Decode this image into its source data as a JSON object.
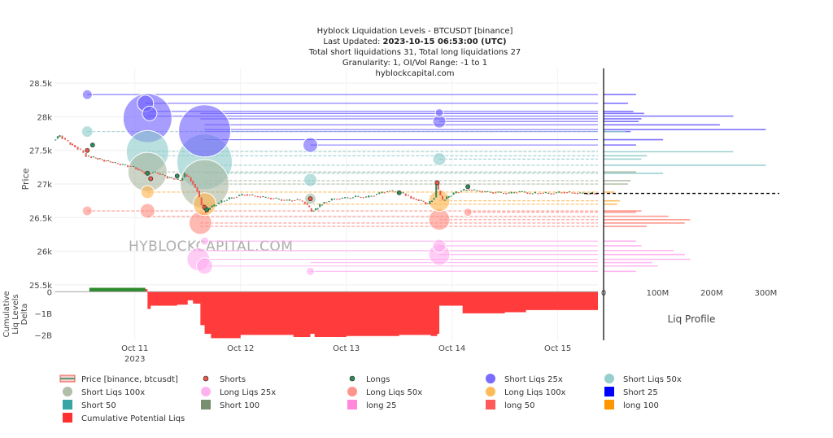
{
  "header": {
    "title": "Hyblock Liquidation Levels - BTCUSDT [binance]",
    "updated_prefix": "Last Updated: ",
    "updated_value": "2023-10-15 06:53:00 (UTC)",
    "totals": "Total short liquidations 31, Total long liquidations 27",
    "granularity": "Granularity: 1, OI/Vol Range: -1 to 1",
    "site": "hyblockcapital.com"
  },
  "watermark": "HYBLOCKCAPITAL.COM",
  "colors": {
    "price_up": "#2e8b57",
    "price_down": "#e8584b",
    "short": "#6a5cff",
    "short50": "#8cc9c9",
    "short100": "#a8b8a0",
    "long25": "#ffaaee",
    "long50": "#ff8a80",
    "long100": "#ffb347",
    "cum_neg": "#ff3030",
    "cum_pos": "#2e8b2e",
    "current": "#000000"
  },
  "chart_data": {
    "type": "line",
    "price_axis": {
      "label": "Price",
      "ticks": [
        25500,
        26000,
        26500,
        27000,
        27500,
        28000,
        28500
      ],
      "tick_labels": [
        "25.5k",
        "26k",
        "26.5k",
        "27k",
        "27.5k",
        "28k",
        "28.5k"
      ],
      "ylim": [
        25450,
        28720
      ]
    },
    "x_axis": {
      "tick_days": [
        11,
        12,
        13,
        14,
        15
      ],
      "tick_labels": [
        "Oct 11",
        "Oct 12",
        "Oct 13",
        "Oct 14",
        "Oct 15"
      ],
      "year_label": "2023",
      "xlim_days": [
        10.24,
        15.38
      ]
    },
    "price_series": {
      "name": "Price [binance, btcusdt]",
      "x_days": [
        10.24,
        10.3,
        10.38,
        10.42,
        10.5,
        10.55,
        10.6,
        10.66,
        10.72,
        10.78,
        10.85,
        10.92,
        11.0,
        11.06,
        11.12,
        11.18,
        11.25,
        11.32,
        11.38,
        11.44,
        11.48,
        11.52,
        11.56,
        11.6,
        11.64,
        11.68,
        11.72,
        11.78,
        11.86,
        11.95,
        12.05,
        12.15,
        12.25,
        12.35,
        12.45,
        12.55,
        12.62,
        12.68,
        12.72,
        12.76,
        12.8,
        12.9,
        13.0,
        13.1,
        13.2,
        13.3,
        13.4,
        13.5,
        13.55,
        13.6,
        13.65,
        13.72,
        13.78,
        13.84,
        13.86,
        13.88,
        13.92,
        13.98,
        14.05,
        14.15,
        14.25,
        14.35,
        14.45,
        14.55,
        14.65,
        14.75,
        14.85,
        14.95,
        15.05,
        15.15,
        15.25,
        15.38
      ],
      "close": [
        27650,
        27720,
        27620,
        27580,
        27500,
        27420,
        27400,
        27380,
        27350,
        27330,
        27300,
        27280,
        27250,
        27200,
        27150,
        27180,
        27150,
        27100,
        27080,
        27050,
        27150,
        27100,
        27000,
        26900,
        26700,
        26580,
        26650,
        26700,
        26760,
        26810,
        26850,
        26820,
        26800,
        26780,
        26750,
        26770,
        26720,
        26600,
        26620,
        26690,
        26730,
        26780,
        26790,
        26810,
        26800,
        26850,
        26900,
        26880,
        26860,
        26820,
        26780,
        26750,
        26700,
        26800,
        27000,
        26900,
        26750,
        26820,
        26880,
        26920,
        26900,
        26880,
        26870,
        26860,
        26890,
        26860,
        26870,
        26860,
        26880,
        26870,
        26860,
        26860
      ]
    },
    "current_price": 26860,
    "short_liqs": [
      {
        "label": "Short Liqs 25x",
        "price": 28330,
        "day": 10.55,
        "size": 6
      },
      {
        "label": "Short Liqs 25x",
        "price": 28200,
        "day": 11.1,
        "size": 10
      },
      {
        "label": "Short Liqs 25x",
        "price": 28050,
        "day": 11.14,
        "size": 9
      },
      {
        "label": "Short Liqs 25x",
        "price": 27980,
        "day": 11.12,
        "size": 30
      },
      {
        "label": "Short Liqs 25x",
        "price": 27790,
        "day": 11.66,
        "size": 32
      },
      {
        "label": "Short Liqs 25x",
        "price": 27580,
        "day": 12.66,
        "size": 9
      },
      {
        "label": "Short Liqs 25x",
        "price": 28060,
        "day": 13.88,
        "size": 5
      },
      {
        "label": "Short Liqs 25x",
        "price": 27930,
        "day": 13.88,
        "size": 8
      },
      {
        "label": "Short Liqs 50x",
        "price": 27780,
        "day": 10.55,
        "size": 7
      },
      {
        "label": "Short Liqs 50x",
        "price": 27480,
        "day": 11.12,
        "size": 26
      },
      {
        "label": "Short Liqs 50x",
        "price": 27330,
        "day": 11.66,
        "size": 34
      },
      {
        "label": "Short Liqs 50x",
        "price": 27060,
        "day": 12.66,
        "size": 8
      },
      {
        "label": "Short Liqs 50x",
        "price": 27370,
        "day": 13.88,
        "size": 8
      },
      {
        "label": "Short Liqs 100x",
        "price": 27180,
        "day": 11.12,
        "size": 24
      },
      {
        "label": "Short Liqs 100x",
        "price": 27000,
        "day": 11.66,
        "size": 30
      },
      {
        "label": "Short Liqs 100x",
        "price": 26780,
        "day": 12.66,
        "size": 7
      }
    ],
    "long_liqs": [
      {
        "label": "Long Liqs 25x",
        "price": 25880,
        "day": 11.6,
        "size": 14
      },
      {
        "label": "Long Liqs 25x",
        "price": 25780,
        "day": 11.66,
        "size": 10
      },
      {
        "label": "Long Liqs 25x",
        "price": 26150,
        "day": 11.66,
        "size": 5
      },
      {
        "label": "Long Liqs 25x",
        "price": 25950,
        "day": 13.88,
        "size": 13
      },
      {
        "label": "Long Liqs 25x",
        "price": 26080,
        "day": 13.88,
        "size": 8
      },
      {
        "label": "Long Liqs 25x",
        "price": 25700,
        "day": 12.66,
        "size": 5
      },
      {
        "label": "Long Liqs 50x",
        "price": 26600,
        "day": 11.12,
        "size": 9
      },
      {
        "label": "Long Liqs 50x",
        "price": 26420,
        "day": 11.62,
        "size": 14
      },
      {
        "label": "Long Liqs 50x",
        "price": 26470,
        "day": 13.88,
        "size": 13
      },
      {
        "label": "Long Liqs 50x",
        "price": 26600,
        "day": 10.55,
        "size": 6
      },
      {
        "label": "Long Liqs 50x",
        "price": 26580,
        "day": 14.15,
        "size": 5
      },
      {
        "label": "Long Liqs 100x",
        "price": 26880,
        "day": 11.12,
        "size": 8
      },
      {
        "label": "Long Liqs 100x",
        "price": 26700,
        "day": 11.66,
        "size": 14
      },
      {
        "label": "Long Liqs 100x",
        "price": 26750,
        "day": 13.88,
        "size": 13
      }
    ],
    "short_levels": [
      {
        "kind": "Short 25",
        "price": 28330,
        "start_day": 10.55,
        "value_m": 60
      },
      {
        "kind": "Short 25",
        "price": 28200,
        "start_day": 11.1,
        "value_m": 45
      },
      {
        "kind": "Short 25",
        "price": 28080,
        "start_day": 11.14,
        "value_m": 55
      },
      {
        "kind": "Short 25",
        "price": 28050,
        "start_day": 11.62,
        "value_m": 75
      },
      {
        "kind": "Short 25",
        "price": 28010,
        "start_day": 11.12,
        "value_m": 240
      },
      {
        "kind": "Short 25",
        "price": 27970,
        "start_day": 11.62,
        "value_m": 70
      },
      {
        "kind": "Short 25",
        "price": 27930,
        "start_day": 13.88,
        "value_m": 65
      },
      {
        "kind": "Short 25",
        "price": 27880,
        "start_day": 11.66,
        "value_m": 215
      },
      {
        "kind": "Short 25",
        "price": 27810,
        "start_day": 11.66,
        "value_m": 300
      },
      {
        "kind": "Short 25",
        "price": 27780,
        "start_day": 11.66,
        "value_m": 50
      },
      {
        "kind": "Short 25",
        "price": 27660,
        "start_day": 11.66,
        "value_m": 110
      },
      {
        "kind": "Short 25",
        "price": 27580,
        "start_day": 12.66,
        "value_m": 60
      },
      {
        "kind": "Short 50",
        "price": 27780,
        "start_day": 10.55,
        "value_m": 40
      },
      {
        "kind": "Short 50",
        "price": 27480,
        "start_day": 11.12,
        "value_m": 240
      },
      {
        "kind": "Short 50",
        "price": 27420,
        "start_day": 11.12,
        "value_m": 80
      },
      {
        "kind": "Short 50",
        "price": 27370,
        "start_day": 13.88,
        "value_m": 70
      },
      {
        "kind": "Short 50",
        "price": 27280,
        "start_day": 11.66,
        "value_m": 300
      },
      {
        "kind": "Short 50",
        "price": 27160,
        "start_day": 11.66,
        "value_m": 110
      },
      {
        "kind": "Short 100",
        "price": 27180,
        "start_day": 11.12,
        "value_m": 60
      },
      {
        "kind": "Short 100",
        "price": 27050,
        "start_day": 11.66,
        "value_m": 50
      },
      {
        "kind": "Short 100",
        "price": 27000,
        "start_day": 11.66,
        "value_m": 45
      }
    ],
    "long_levels": [
      {
        "kind": "long 25",
        "price": 26150,
        "start_day": 11.66,
        "value_m": 60
      },
      {
        "kind": "long 25",
        "price": 26080,
        "start_day": 13.88,
        "value_m": 70
      },
      {
        "kind": "long 25",
        "price": 26010,
        "start_day": 11.6,
        "value_m": 130
      },
      {
        "kind": "long 25",
        "price": 25950,
        "start_day": 13.88,
        "value_m": 150
      },
      {
        "kind": "long 25",
        "price": 25880,
        "start_day": 11.6,
        "value_m": 160
      },
      {
        "kind": "long 25",
        "price": 25830,
        "start_day": 12.66,
        "value_m": 90
      },
      {
        "kind": "long 25",
        "price": 25780,
        "start_day": 11.66,
        "value_m": 100
      },
      {
        "kind": "long 25",
        "price": 25700,
        "start_day": 12.66,
        "value_m": 60
      },
      {
        "kind": "long 50",
        "price": 26600,
        "start_day": 10.55,
        "value_m": 70
      },
      {
        "kind": "long 50",
        "price": 26580,
        "start_day": 14.15,
        "value_m": 60
      },
      {
        "kind": "long 50",
        "price": 26520,
        "start_day": 11.12,
        "value_m": 120
      },
      {
        "kind": "long 50",
        "price": 26470,
        "start_day": 13.88,
        "value_m": 160
      },
      {
        "kind": "long 50",
        "price": 26420,
        "start_day": 11.62,
        "value_m": 150
      },
      {
        "kind": "long 50",
        "price": 26370,
        "start_day": 11.62,
        "value_m": 80
      },
      {
        "kind": "long 100",
        "price": 26880,
        "start_day": 11.12,
        "value_m": 20
      },
      {
        "kind": "long 100",
        "price": 26750,
        "start_day": 13.88,
        "value_m": 30
      },
      {
        "kind": "long 100",
        "price": 26700,
        "start_day": 11.66,
        "value_m": 25
      }
    ],
    "cumulative": {
      "name": "Cumulative Potential Liqs",
      "ylabel": "Cumulative Liq Levels Delta",
      "ticks": [
        0,
        -1000,
        -2000
      ],
      "tick_labels": [
        "0",
        "−1B",
        "−2B"
      ],
      "ylim": [
        -2250,
        200
      ],
      "x_days": [
        10.24,
        10.55,
        10.57,
        11.0,
        11.1,
        11.12,
        11.15,
        11.4,
        11.5,
        11.55,
        11.62,
        11.66,
        11.72,
        11.8,
        12.0,
        12.5,
        12.6,
        12.66,
        12.7,
        12.72,
        13.0,
        13.2,
        13.5,
        13.8,
        13.86,
        13.88,
        14.1,
        14.3,
        14.5,
        14.7,
        15.0,
        15.38
      ],
      "values": [
        0,
        0,
        180,
        120,
        120,
        -800,
        -650,
        -600,
        -400,
        -550,
        -1550,
        -1950,
        -2150,
        -2150,
        -2000,
        -2100,
        -2100,
        -1950,
        -2100,
        -2100,
        -2050,
        -2050,
        -2000,
        -2050,
        -1950,
        -650,
        -1000,
        -1000,
        -950,
        -850,
        -850,
        -850
      ]
    },
    "profile": {
      "xlabel": "Liq Profile",
      "ticks": [
        0,
        100,
        200,
        300
      ],
      "tick_labels": [
        "0",
        "100M",
        "200M",
        "300M"
      ],
      "xlim_m": [
        0,
        310
      ]
    },
    "legend": [
      {
        "label": "Price [binance, btcusdt]",
        "kind": "price"
      },
      {
        "label": "Shorts",
        "kind": "dot",
        "color": "#e8584b"
      },
      {
        "label": "Longs",
        "kind": "dot",
        "color": "#2e8b57"
      },
      {
        "label": "Short Liqs 25x",
        "kind": "circle",
        "color": "#6a5cff"
      },
      {
        "label": "Short Liqs 50x",
        "kind": "circle",
        "color": "#8cc9c9"
      },
      {
        "label": "Short Liqs 100x",
        "kind": "circle",
        "color": "#a8b8a0"
      },
      {
        "label": "Long Liqs 25x",
        "kind": "circle",
        "color": "#ffaaee"
      },
      {
        "label": "Long Liqs 50x",
        "kind": "circle",
        "color": "#ff8a80"
      },
      {
        "label": "Long Liqs 100x",
        "kind": "circle",
        "color": "#ffb347"
      },
      {
        "label": "Short 25",
        "kind": "square",
        "color": "#0000ff"
      },
      {
        "label": "Short 50",
        "kind": "square",
        "color": "#3aa3a3"
      },
      {
        "label": "Short 100",
        "kind": "square",
        "color": "#7a8f6f"
      },
      {
        "label": "long 25",
        "kind": "square",
        "color": "#ff88dd"
      },
      {
        "label": "long 50",
        "kind": "square",
        "color": "#ff5a5a"
      },
      {
        "label": "long 100",
        "kind": "square",
        "color": "#ff9500"
      },
      {
        "label": "Cumulative Potential Liqs",
        "kind": "square",
        "color": "#ff3030"
      }
    ]
  }
}
